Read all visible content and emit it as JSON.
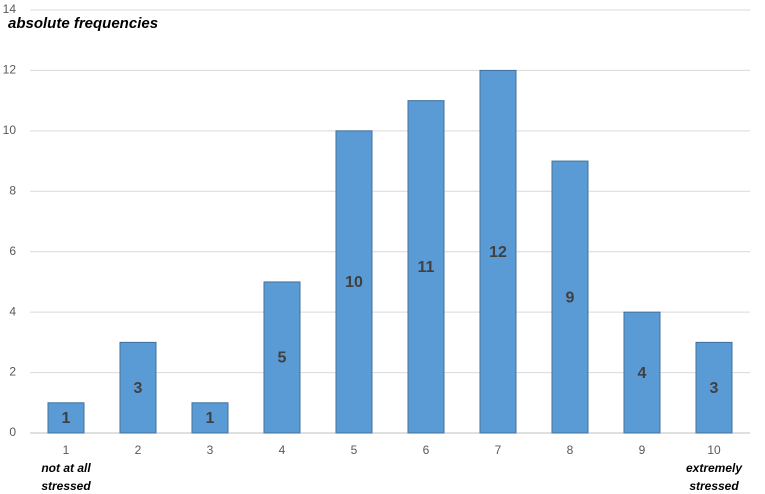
{
  "chart_data": {
    "type": "bar",
    "y_label": "absolute frequencies",
    "categories": [
      "1",
      "2",
      "3",
      "4",
      "5",
      "6",
      "7",
      "8",
      "9",
      "10"
    ],
    "values": [
      1,
      3,
      1,
      5,
      10,
      11,
      12,
      9,
      4,
      3
    ],
    "color": "#5b9bd5",
    "ylim": [
      0,
      14
    ],
    "yticks": [
      0,
      2,
      4,
      6,
      8,
      10,
      12,
      14
    ],
    "grid": true,
    "low_label": [
      "not at all",
      "stressed"
    ],
    "high_label": [
      "extremely",
      "stressed"
    ]
  }
}
